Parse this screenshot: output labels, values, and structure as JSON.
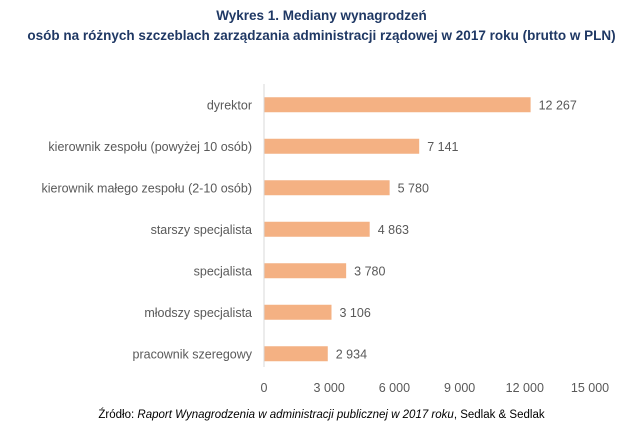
{
  "title_line1": "Wykres 1. Mediany wynagrodzeń",
  "title_line2": "osób na różnych szczeblach zarządzania administracji rządowej w 2017 roku (brutto w PLN)",
  "source": {
    "prefix": "Źródło: ",
    "title": "Raport Wynagrodzenia w administracji publicznej w 2017 roku",
    "suffix": ", Sedlak & Sedlak"
  },
  "colors": {
    "bar": "#f4b183",
    "title": "#1f3864",
    "text": "#595959",
    "axis": "#d9d9d9"
  },
  "chart_data": {
    "type": "bar",
    "orientation": "horizontal",
    "categories": [
      "dyrektor",
      "kierownik zespołu (powyżej 10 osób)",
      "kierownik małego zespołu (2-10 osób)",
      "starszy specjalista",
      "specjalista",
      "młodszy specjalista",
      "pracownik szeregowy"
    ],
    "values": [
      12267,
      7141,
      5780,
      4863,
      3780,
      3106,
      2934
    ],
    "value_labels": [
      "12 267",
      "7 141",
      "5 780",
      "4 863",
      "3 780",
      "3 106",
      "2 934"
    ],
    "xlim": [
      0,
      15000
    ],
    "ticks": [
      0,
      3000,
      6000,
      9000,
      12000,
      15000
    ],
    "tick_labels": [
      "0",
      "3 000",
      "6 000",
      "9 000",
      "12 000",
      "15 000"
    ],
    "grid": false
  }
}
